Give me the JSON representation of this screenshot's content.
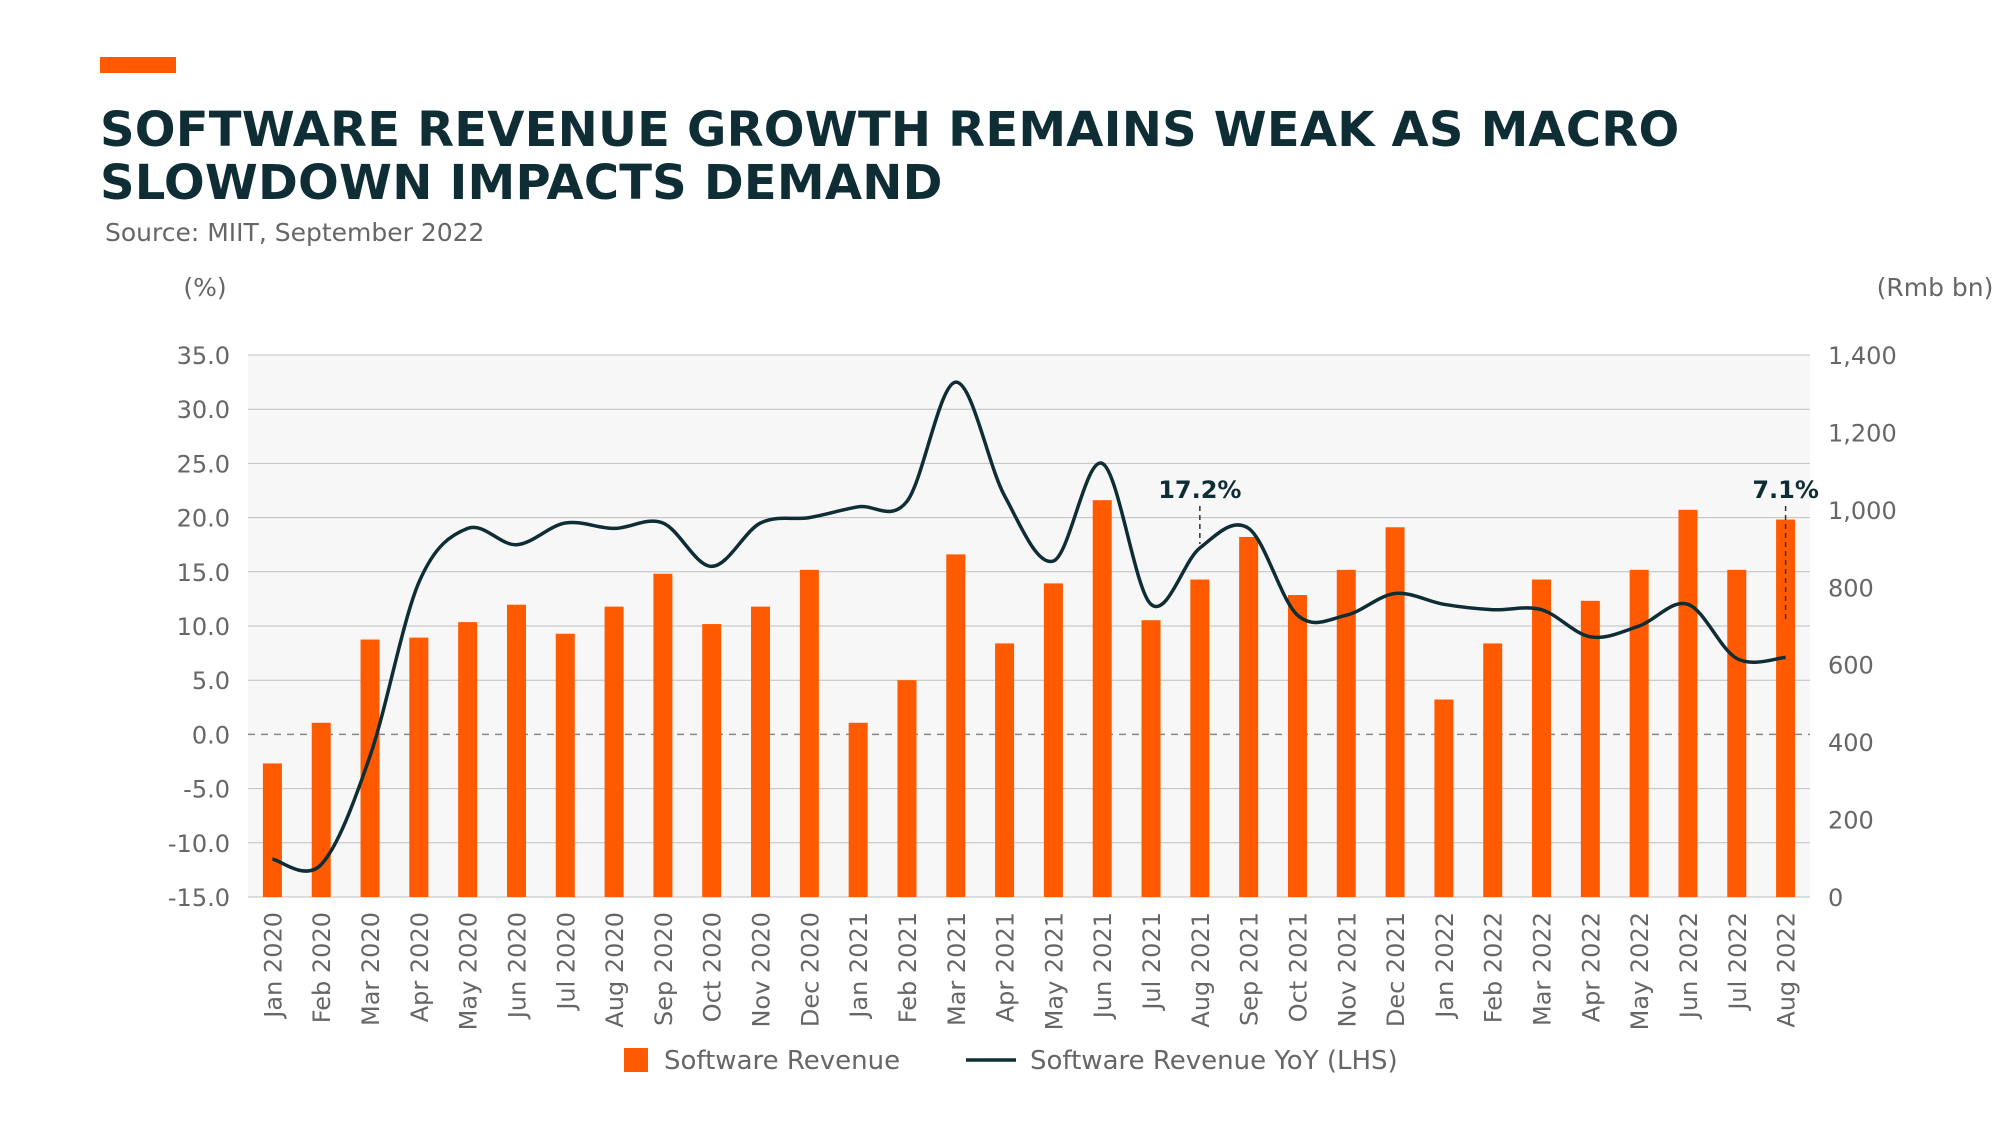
{
  "header": {
    "title": "SOFTWARE REVENUE GROWTH REMAINS WEAK AS MACRO SLOWDOWN IMPACTS DEMAND",
    "source": "Source: MIIT, September 2022"
  },
  "colors": {
    "accent": "#ff5a00",
    "bar": "#ff5a00",
    "line": "#0f2d35",
    "plot_background": "#f7f7f7",
    "grid": "#bfbfbf",
    "axis_text": "#666666"
  },
  "chart_data": {
    "type": "bar",
    "categories": [
      "Jan 2020",
      "Feb 2020",
      "Mar 2020",
      "Apr 2020",
      "May 2020",
      "Jun 2020",
      "Jul 2020",
      "Aug 2020",
      "Sep 2020",
      "Oct 2020",
      "Nov 2020",
      "Dec 2020",
      "Jan 2021",
      "Feb 2021",
      "Mar 2021",
      "Apr 2021",
      "May 2021",
      "Jun 2021",
      "Jul 2021",
      "Aug 2021",
      "Sep 2021",
      "Oct 2021",
      "Nov 2021",
      "Dec 2021",
      "Jan 2022",
      "Feb 2022",
      "Mar 2022",
      "Apr 2022",
      "May 2022",
      "Jun 2022",
      "Jul 2022",
      "Aug 2022"
    ],
    "series": [
      {
        "name": "Software Revenue",
        "type": "bar",
        "axis": "right",
        "values": [
          345,
          450,
          665,
          670,
          710,
          755,
          680,
          750,
          835,
          705,
          750,
          845,
          450,
          560,
          885,
          655,
          810,
          1025,
          715,
          820,
          930,
          780,
          845,
          955,
          510,
          655,
          820,
          765,
          845,
          1000,
          845,
          975
        ]
      },
      {
        "name": "Software Revenue YoY (LHS)",
        "type": "line",
        "axis": "left",
        "values": [
          -11.5,
          -12.0,
          -2.0,
          14.0,
          19.0,
          17.5,
          19.5,
          19.0,
          19.5,
          15.5,
          19.5,
          20.0,
          21.0,
          21.5,
          32.5,
          22.0,
          16.0,
          25.0,
          12.0,
          17.2,
          19.0,
          11.0,
          11.0,
          13.0,
          12.0,
          11.5,
          11.5,
          9.0,
          10.0,
          12.0,
          7.0,
          7.1
        ]
      }
    ],
    "left_axis": {
      "label": "(%)",
      "range": [
        -15,
        35
      ],
      "ticks": [
        "35.0",
        "30.0",
        "25.0",
        "20.0",
        "15.0",
        "10.0",
        "5.0",
        "0.0",
        "-5.0",
        "-10.0",
        "-15.0"
      ]
    },
    "right_axis": {
      "label": "(Rmb bn)",
      "range": [
        0,
        1400
      ],
      "ticks": [
        "1,400",
        "1,200",
        "1,000",
        "800",
        "600",
        "400",
        "200",
        "0"
      ]
    },
    "annotations": [
      {
        "text": "17.2%",
        "category": "Aug 2021"
      },
      {
        "text": "7.1%",
        "category": "Aug 2022"
      }
    ],
    "zero_line": "dashed",
    "grid": true,
    "legend_position": "bottom"
  }
}
